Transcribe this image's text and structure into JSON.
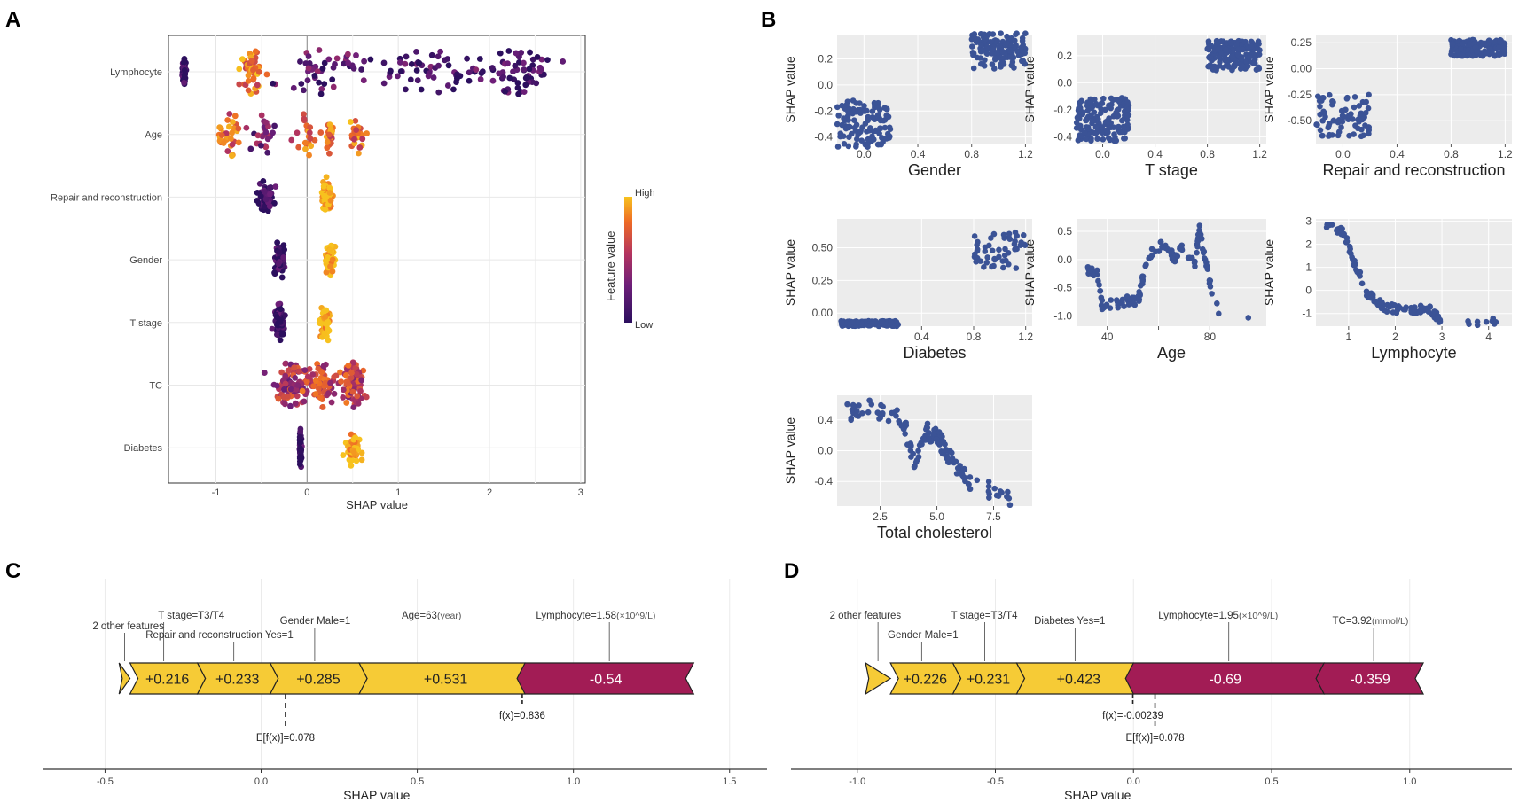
{
  "panel_labels": [
    "A",
    "B",
    "C",
    "D"
  ],
  "colors": {
    "scatter_point": "#3b5396",
    "positive": "#f6cb36",
    "negative": "#a21c55",
    "panel_bg": "#ececec",
    "grid": "#ffffff",
    "gradient": [
      "#2c0f5e",
      "#6e1f79",
      "#b4345f",
      "#ee6a25",
      "#f7c21e"
    ]
  },
  "chart_data": [
    {
      "id": "A",
      "type": "scatter",
      "subtype": "beeswarm",
      "xlabel": "SHAP value",
      "ylabel": "",
      "xlim": [
        -1.52,
        3.05
      ],
      "xticks": [
        "-1",
        "0",
        "1",
        "2",
        "3"
      ],
      "xtick_values": [
        -1,
        0,
        1,
        2,
        3
      ],
      "features": [
        "Lymphocyte",
        "Age",
        "Repair and reconstruction",
        "Gender",
        "T stage",
        "TC",
        "Diabetes"
      ],
      "legend": {
        "title": "Feature value",
        "high": "High",
        "low": "Low"
      },
      "series": [
        {
          "name": "Lymphocyte",
          "n": 260,
          "clusters": [
            [
              -1.35,
              0.02,
              0.03
            ],
            [
              -0.6,
              0.12,
              0.78
            ],
            [
              0.2,
              0.45,
              0.2
            ],
            [
              1.3,
              0.5,
              0.1
            ],
            [
              2.3,
              0.35,
              0.06
            ]
          ]
        },
        {
          "name": "Age",
          "n": 140,
          "clusters": [
            [
              -0.85,
              0.12,
              0.7
            ],
            [
              -0.5,
              0.12,
              0.3
            ],
            [
              0.0,
              0.12,
              0.7
            ],
            [
              0.25,
              0.03,
              0.75
            ],
            [
              0.55,
              0.1,
              0.75
            ]
          ]
        },
        {
          "name": "Repair and reconstruction",
          "n": 150,
          "clusters": [
            [
              -0.45,
              0.1,
              0.0
            ],
            [
              0.22,
              0.05,
              1.0
            ]
          ]
        },
        {
          "name": "Gender",
          "n": 150,
          "clusters": [
            [
              -0.3,
              0.05,
              0.0
            ],
            [
              0.25,
              0.05,
              1.0
            ]
          ]
        },
        {
          "name": "T stage",
          "n": 150,
          "clusters": [
            [
              -0.3,
              0.05,
              0.0
            ],
            [
              0.2,
              0.05,
              1.0
            ]
          ]
        },
        {
          "name": "TC",
          "n": 230,
          "clusters": [
            [
              -0.2,
              0.22,
              0.45
            ],
            [
              0.15,
              0.2,
              0.55
            ],
            [
              0.5,
              0.12,
              0.55
            ]
          ]
        },
        {
          "name": "Diabetes",
          "n": 110,
          "clusters": [
            [
              -0.07,
              0.01,
              0.0
            ],
            [
              0.5,
              0.08,
              1.0
            ]
          ]
        }
      ]
    },
    {
      "id": "B-gender",
      "type": "scatter",
      "xlabel": "Gender",
      "ylabel": "SHAP value",
      "xlim": [
        -0.2,
        1.25
      ],
      "ylim": [
        -0.45,
        0.38
      ],
      "xticks": [
        "0.0",
        "0.4",
        "0.8",
        "1.2"
      ],
      "xtick_values": [
        0,
        0.4,
        0.8,
        1.2
      ],
      "yticks": [
        "-0.4",
        "-0.2",
        "0.0",
        "0.2"
      ],
      "ytick_values": [
        -0.4,
        -0.2,
        0,
        0.2
      ],
      "points": [
        {
          "x": 0,
          "xj": 0.2,
          "y": -0.3,
          "yj": 0.18,
          "n": 110
        },
        {
          "x": 1,
          "xj": 0.2,
          "y": 0.26,
          "yj": 0.14,
          "n": 130
        }
      ]
    },
    {
      "id": "B-tstage",
      "type": "scatter",
      "xlabel": "T stage",
      "ylabel": "SHAP value",
      "xlim": [
        -0.2,
        1.25
      ],
      "ylim": [
        -0.45,
        0.35
      ],
      "xticks": [
        "0.0",
        "0.4",
        "0.8",
        "1.2"
      ],
      "xtick_values": [
        0,
        0.4,
        0.8,
        1.2
      ],
      "yticks": [
        "-0.4",
        "-0.2",
        "0.0",
        "0.2"
      ],
      "ytick_values": [
        -0.4,
        -0.2,
        0,
        0.2
      ],
      "points": [
        {
          "x": 0,
          "xj": 0.2,
          "y": -0.27,
          "yj": 0.16,
          "n": 150
        },
        {
          "x": 1,
          "xj": 0.2,
          "y": 0.2,
          "yj": 0.11,
          "n": 170
        }
      ]
    },
    {
      "id": "B-repair",
      "type": "scatter",
      "xlabel": "Repair and reconstruction",
      "ylabel": "SHAP value",
      "xlim": [
        -0.2,
        1.25
      ],
      "ylim": [
        -0.72,
        0.32
      ],
      "xticks": [
        "0.0",
        "0.4",
        "0.8",
        "1.2"
      ],
      "xtick_values": [
        0,
        0.4,
        0.8,
        1.2
      ],
      "yticks": [
        "-0.50",
        "-0.25",
        "0.00",
        "0.25"
      ],
      "ytick_values": [
        -0.5,
        -0.25,
        0,
        0.25
      ],
      "points": [
        {
          "x": 0,
          "xj": 0.2,
          "y": -0.45,
          "yj": 0.2,
          "n": 70
        },
        {
          "x": 1,
          "xj": 0.2,
          "y": 0.2,
          "yj": 0.08,
          "n": 160
        }
      ]
    },
    {
      "id": "B-diabetes",
      "type": "scatter",
      "xlabel": "Diabetes",
      "ylabel": "SHAP value",
      "xlim": [
        -0.25,
        1.25
      ],
      "ylim": [
        -0.1,
        0.72
      ],
      "xticks": [
        "0.4",
        "0.8",
        "1.2"
      ],
      "xtick_values": [
        0.4,
        0.8,
        1.2
      ],
      "yticks": [
        "0.00",
        "0.25",
        "0.50"
      ],
      "ytick_values": [
        0,
        0.25,
        0.5
      ],
      "points": [
        {
          "x": 0,
          "xj": 0.22,
          "y": -0.08,
          "yj": 0.02,
          "n": 110
        },
        {
          "x": 1,
          "xj": 0.2,
          "y": 0.48,
          "yj": 0.14,
          "n": 50
        }
      ]
    },
    {
      "id": "B-age",
      "type": "scatter",
      "xlabel": "Age",
      "ylabel": "SHAP value",
      "xlim": [
        28,
        102
      ],
      "ylim": [
        -1.18,
        0.72
      ],
      "xticks": [
        "40",
        "",
        "80"
      ],
      "xtick_values": [
        40,
        60,
        80
      ],
      "yticks": [
        "-1.0",
        "-0.5",
        "0.0",
        "0.5"
      ],
      "ytick_values": [
        -1,
        -0.5,
        0,
        0.5
      ],
      "curve": [
        [
          32,
          -0.15
        ],
        [
          36,
          -0.25
        ],
        [
          38,
          -0.8
        ],
        [
          45,
          -0.8
        ],
        [
          48,
          -0.72
        ],
        [
          52,
          -0.75
        ],
        [
          54,
          -0.3
        ],
        [
          58,
          0.22
        ],
        [
          64,
          0.25
        ],
        [
          66,
          0.02
        ],
        [
          70,
          0.22
        ],
        [
          74,
          -0.1
        ],
        [
          76,
          0.55
        ],
        [
          80,
          -0.4
        ],
        [
          84,
          -1.05
        ]
      ],
      "jitter": 0.09,
      "n": 140,
      "extras": [
        [
          95,
          -1.03
        ]
      ]
    },
    {
      "id": "B-lymphocyte",
      "type": "scatter",
      "xlabel": "Lymphocyte",
      "ylabel": "SHAP value",
      "xlim": [
        0.3,
        4.5
      ],
      "ylim": [
        -1.55,
        3.1
      ],
      "xticks": [
        "1",
        "2",
        "3",
        "4"
      ],
      "xtick_values": [
        1,
        2,
        3,
        4
      ],
      "yticks": [
        "-1",
        "0",
        "1",
        "2",
        "3"
      ],
      "ytick_values": [
        -1,
        0,
        1,
        2,
        3
      ],
      "curve": [
        [
          0.5,
          2.8
        ],
        [
          0.9,
          2.5
        ],
        [
          1.1,
          1.3
        ],
        [
          1.4,
          -0.1
        ],
        [
          1.8,
          -0.75
        ],
        [
          2.3,
          -0.9
        ],
        [
          2.7,
          -0.75
        ],
        [
          3.0,
          -1.35
        ],
        [
          4.3,
          -1.35
        ]
      ],
      "jitter": 0.08,
      "n": 120,
      "extras": []
    },
    {
      "id": "B-tc",
      "type": "scatter",
      "xlabel": "Total cholesterol",
      "ylabel": "SHAP value",
      "xlim": [
        0.6,
        9.2
      ],
      "ylim": [
        -0.72,
        0.72
      ],
      "xticks": [
        "2.5",
        "5.0",
        "7.5"
      ],
      "xtick_values": [
        2.5,
        5,
        7.5
      ],
      "yticks": [
        "-0.4",
        "0.0",
        "0.4"
      ],
      "ytick_values": [
        -0.4,
        0,
        0.4
      ],
      "curve": [
        [
          1.0,
          0.5
        ],
        [
          2.0,
          0.55
        ],
        [
          3.5,
          0.4
        ],
        [
          4.0,
          -0.1
        ],
        [
          4.5,
          0.25
        ],
        [
          5.0,
          0.2
        ],
        [
          5.5,
          -0.1
        ],
        [
          6.0,
          -0.2
        ],
        [
          6.5,
          -0.4
        ],
        [
          8.5,
          -0.65
        ]
      ],
      "jitter": 0.17,
      "n": 140,
      "extras": []
    },
    {
      "id": "C",
      "type": "bar",
      "subtype": "force-plot",
      "xlabel": "SHAP value",
      "xlim": [
        -0.7,
        1.62
      ],
      "xticks": [
        "-0.5",
        "0.0",
        "0.5",
        "1.0",
        "1.5"
      ],
      "xtick_values": [
        -0.5,
        0,
        0.5,
        1,
        1.5
      ],
      "base_value_label": "E[f(x)]=0.078",
      "base_value": 0.078,
      "output_value_label": "f(x)=0.836",
      "output_value": 0.836,
      "segments": [
        {
          "start": -0.455,
          "end": -0.42,
          "value_label": "",
          "sign": "pos",
          "feature": "2 other features",
          "tx": -0.54,
          "ty": -38
        },
        {
          "start": -0.42,
          "end": -0.204,
          "value_label": "+0.216",
          "sign": "pos",
          "feature": "T stage=T3/T4",
          "tx": -0.33,
          "ty": -50
        },
        {
          "start": -0.204,
          "end": 0.029,
          "value_label": "+0.233",
          "sign": "pos",
          "feature": "Repair and reconstruction Yes=1",
          "tx": -0.37,
          "ty": -28
        },
        {
          "start": 0.029,
          "end": 0.314,
          "value_label": "+0.285",
          "sign": "pos",
          "feature": "Gender Male=1",
          "tx": 0.06,
          "ty": -44
        },
        {
          "start": 0.314,
          "end": 0.845,
          "value_label": "+0.531",
          "sign": "pos",
          "feature": "Age=63",
          "feature_unit": "(year)",
          "tx": 0.45,
          "ty": -50
        },
        {
          "start": 0.845,
          "end": 1.385,
          "value_label": "-0.54",
          "sign": "neg",
          "feature": "Lymphocyte=1.58",
          "feature_unit": "(×10^9/L)",
          "tx": 0.88,
          "ty": -50
        }
      ]
    },
    {
      "id": "D",
      "type": "bar",
      "subtype": "force-plot",
      "xlabel": "SHAP value",
      "xlim": [
        -1.24,
        1.37
      ],
      "xticks": [
        "-1.0",
        "-0.5",
        "0.0",
        "0.5",
        "1.0"
      ],
      "xtick_values": [
        -1,
        -0.5,
        0,
        0.5,
        1
      ],
      "base_value_label": "E[f(x)]=0.078",
      "base_value": 0.078,
      "output_value_label": "f(x)=-0.00239",
      "output_value": -0.00239,
      "segments": [
        {
          "start": -0.97,
          "end": -0.88,
          "value_label": "",
          "sign": "pos",
          "feature": "2 other features",
          "tx": -1.1,
          "ty": -50
        },
        {
          "start": -0.88,
          "end": -0.654,
          "value_label": "+0.226",
          "sign": "pos",
          "feature": "Gender Male=1",
          "tx": -0.89,
          "ty": -28
        },
        {
          "start": -0.654,
          "end": -0.423,
          "value_label": "+0.231",
          "sign": "pos",
          "feature": "T stage=T3/T4",
          "tx": -0.66,
          "ty": -50
        },
        {
          "start": -0.423,
          "end": 0.0,
          "value_label": "+0.423",
          "sign": "pos",
          "feature": "Diabetes Yes=1",
          "tx": -0.36,
          "ty": -44
        },
        {
          "start": 0.0,
          "end": 0.69,
          "value_label": "-0.69",
          "sign": "neg",
          "feature": "Lymphocyte=1.95",
          "feature_unit": "(×10^9/L)",
          "tx": 0.09,
          "ty": -50
        },
        {
          "start": 0.69,
          "end": 1.049,
          "value_label": "-0.359",
          "sign": "neg",
          "feature": "TC=3.92",
          "feature_unit": "(mmol/L)",
          "tx": 0.72,
          "ty": -44
        }
      ]
    }
  ]
}
